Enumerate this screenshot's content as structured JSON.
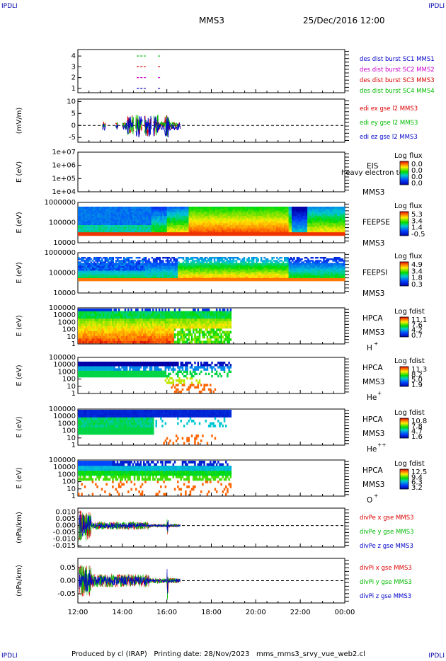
{
  "corner_label": "IPDLI",
  "header": {
    "mission": "MMS3",
    "datetime": "25/Dec/2016 12:00"
  },
  "footer": "Produced by cl (IRAP)   Printing date: 28/Nov/2023   mms_mms3_srvy_vue_web2.cl",
  "time_axis": {
    "ticks": [
      "12:00",
      "14:00",
      "16:00",
      "18:00",
      "20:00",
      "22:00",
      "00:00"
    ]
  },
  "colors": {
    "red": "#dd0000",
    "green": "#00bb00",
    "blue": "#0000cc",
    "magenta": "#cc00cc"
  },
  "chart_data": [
    {
      "type": "scatter",
      "id": "burst",
      "yticks": [
        "1",
        "2",
        "3",
        "4"
      ],
      "ylim": [
        0.6,
        4.6
      ],
      "legend": [
        {
          "label": "des dist burst SC1 MMS1",
          "color": "#0000cc"
        },
        {
          "label": "des dist burst SC2 MMS2",
          "color": "#cc00cc"
        },
        {
          "label": "des dist burst SC3 MMS3",
          "color": "#dd0000"
        },
        {
          "label": "des dist burst SC4 MMS4",
          "color": "#00bb00"
        }
      ],
      "intervals": [
        {
          "level": 4,
          "x": [
            [
              14.65,
              15.05
            ],
            [
              15.6,
              15.75
            ]
          ],
          "color": "#00bb00"
        },
        {
          "level": 3,
          "x": [
            [
              14.65,
              15.05
            ],
            [
              15.6,
              15.75
            ]
          ],
          "color": "#dd0000"
        },
        {
          "level": 2,
          "x": [
            [
              14.65,
              15.05
            ],
            [
              15.6,
              15.75
            ]
          ],
          "color": "#cc00cc"
        },
        {
          "level": 1,
          "x": [
            [
              14.65,
              15.05
            ],
            [
              15.6,
              15.75
            ]
          ],
          "color": "#0000cc"
        }
      ]
    },
    {
      "type": "line",
      "id": "edi",
      "ylabel": "(mV/m)",
      "yticks": [
        "-5",
        "0",
        "5",
        "10"
      ],
      "ylim": [
        -7,
        11
      ],
      "series": [
        {
          "name": "edi ex gse l2 MMS3",
          "color": "#dd0000"
        },
        {
          "name": "edi ey gse l2 MMS3",
          "color": "#00bb00"
        },
        {
          "name": "edi ez gse l2 MMS3",
          "color": "#0000cc"
        }
      ]
    },
    {
      "type": "heatmap",
      "id": "eis",
      "ylabel": "E (eV)",
      "yticks": [
        "1e+04",
        "1e+05",
        "1e+06",
        "1e+07"
      ],
      "instrument": "EIS",
      "sc": "MMS3",
      "overlay": "heavy electron to",
      "cbar_title": "Log flux",
      "cbar_ticks": [
        "0.0",
        "0.0",
        "0.0",
        "0.0"
      ]
    },
    {
      "type": "heatmap",
      "id": "feepse",
      "ylabel": "E (eV)",
      "yticks": [
        "10000",
        "100000",
        "1000000"
      ],
      "instrument": "FEEPSE",
      "sc": "MMS3",
      "cbar_title": "Log flux",
      "cbar_ticks": [
        "5.3",
        "3.4",
        "1.4",
        "-0.5"
      ]
    },
    {
      "type": "heatmap",
      "id": "feepsi",
      "ylabel": "E (eV)",
      "yticks": [
        "10000",
        "100000",
        "1000000"
      ],
      "instrument": "FEEPSI",
      "sc": "MMS3",
      "cbar_title": "Log flux",
      "cbar_ticks": [
        "4.9",
        "3.4",
        "1.8",
        "0.3"
      ]
    },
    {
      "type": "heatmap",
      "id": "hpca_h",
      "ylabel": "E (eV)",
      "yticks": [
        "1",
        "10",
        "100",
        "1000",
        "10000",
        "100000"
      ],
      "instrument": "HPCA",
      "sc": "MMS3",
      "species": "H",
      "charge": "+",
      "cbar_title": "Log fdist",
      "cbar_ticks": [
        "11.1",
        "7.6",
        "4.2",
        "0.7"
      ]
    },
    {
      "type": "heatmap",
      "id": "hpca_he",
      "ylabel": "E (eV)",
      "yticks": [
        "1",
        "10",
        "100",
        "1000",
        "10000",
        "100000"
      ],
      "instrument": "HPCA",
      "sc": "MMS3",
      "species": "He",
      "charge": "+",
      "cbar_title": "Log fdist",
      "cbar_ticks": [
        "11.3",
        "8.2",
        "5.0",
        "1.9"
      ]
    },
    {
      "type": "heatmap",
      "id": "hpca_hepp",
      "ylabel": "E (eV)",
      "yticks": [
        "1",
        "10",
        "100",
        "1000",
        "10000",
        "100000"
      ],
      "instrument": "HPCA",
      "sc": "MMS3",
      "species": "He",
      "charge": "++",
      "cbar_title": "Log fdist",
      "cbar_ticks": [
        "10.8",
        "7.8",
        "4.7",
        "1.6"
      ]
    },
    {
      "type": "heatmap",
      "id": "hpca_o",
      "ylabel": "E (eV)",
      "yticks": [
        "1",
        "10",
        "100",
        "1000",
        "10000",
        "100000"
      ],
      "instrument": "HPCA",
      "sc": "MMS3",
      "species": "O",
      "charge": "+",
      "cbar_title": "Log fdist",
      "cbar_ticks": [
        "12.5",
        "9.4",
        "6.3",
        "3.2"
      ]
    },
    {
      "type": "line",
      "id": "divpe",
      "ylabel": "(nPa/km)",
      "yticks": [
        "-0.015",
        "-0.010",
        "-0.005",
        "0.000",
        "0.005",
        "0.010"
      ],
      "ylim": [
        -0.016,
        0.013
      ],
      "series": [
        {
          "name": "divPe x gse MMS3",
          "color": "#dd0000"
        },
        {
          "name": "divPe y gse MMS3",
          "color": "#00bb00"
        },
        {
          "name": "divPe z gse MMS3",
          "color": "#0000cc"
        }
      ]
    },
    {
      "type": "line",
      "id": "divpi",
      "ylabel": "(nPa/km)",
      "yticks": [
        "-0.05",
        "0.00",
        "0.05"
      ],
      "ylim": [
        -0.085,
        0.085
      ],
      "series": [
        {
          "name": "divPi x gse MMS3",
          "color": "#dd0000"
        },
        {
          "name": "divPi y gse MMS3",
          "color": "#00bb00"
        },
        {
          "name": "divPi z gse MMS3",
          "color": "#0000cc"
        }
      ]
    }
  ]
}
